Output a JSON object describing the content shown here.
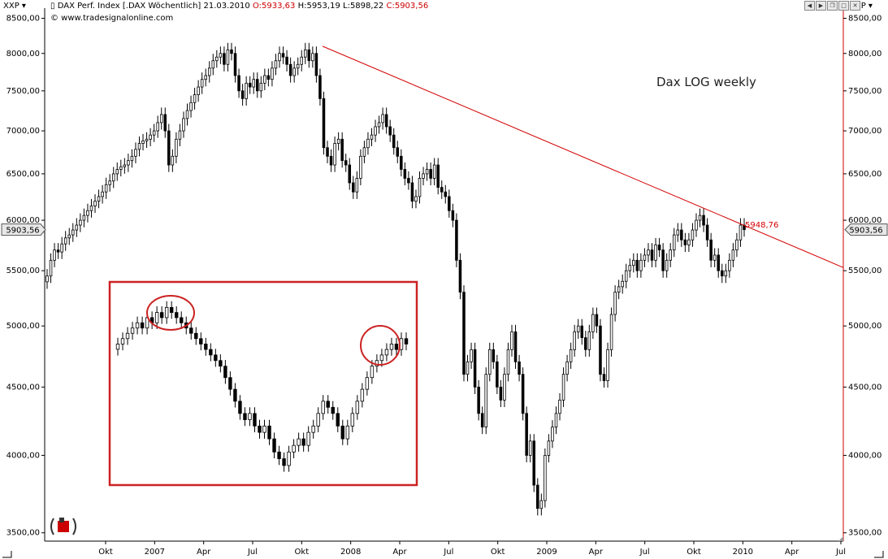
{
  "header": {
    "symbol_left": "XXP",
    "symbol_right": "XXP",
    "instrument": "DAX Perf. Index [.DAX  Wöchentlich] 21.03.2010",
    "open": "O:5933,63",
    "high": "H:5953,19",
    "low": "L:5898,22",
    "close": "C:5903,56",
    "copyright": "© www.tradesignalonline.com"
  },
  "colors": {
    "trendline": "#d40000",
    "annotation_box": "#cc2222",
    "axis_line": "#cc0000",
    "price_tag_bg": "#e8e8e8",
    "candle_up_fill": "#ffffff",
    "candle_down_fill": "#000000"
  },
  "chart_data": {
    "type": "candlestick",
    "title": "Dax LOG weekly",
    "scale": "log",
    "ylim": [
      3450,
      8650
    ],
    "y_ticks": [
      3500,
      4000,
      4500,
      5000,
      5500,
      6000,
      6500,
      7000,
      7500,
      8000,
      8500
    ],
    "y_tick_labels": [
      "3500,00",
      "4000,00",
      "4500,00",
      "5000,00",
      "5500,00",
      "6000,00",
      "6500,00",
      "7000,00",
      "7500,00",
      "8000,00",
      "8500,00"
    ],
    "x_tick_labels": [
      "Okt",
      "2007",
      "Apr",
      "Jul",
      "Okt",
      "2008",
      "Apr",
      "Jul",
      "Okt",
      "2009",
      "Apr",
      "Jul",
      "Okt",
      "2010",
      "Apr",
      "Jul"
    ],
    "current_price_label": "5903,56",
    "trendline": {
      "from": {
        "x": "2007-07",
        "y": 8100
      },
      "to": {
        "x": "2010-08",
        "y": 5530
      },
      "label": "5948,76",
      "label_value": 5948.76
    },
    "annotations": [
      {
        "type": "box",
        "description_hidden": true
      },
      {
        "type": "circle",
        "target": "2007 top"
      },
      {
        "type": "circle",
        "target": "2010 current"
      }
    ],
    "weekly_closes": [
      5450,
      5600,
      5700,
      5680,
      5760,
      5820,
      5850,
      5900,
      5950,
      6000,
      6050,
      6100,
      6150,
      6200,
      6250,
      6300,
      6380,
      6420,
      6500,
      6550,
      6580,
      6600,
      6650,
      6700,
      6780,
      6850,
      6880,
      6900,
      6950,
      7000,
      7100,
      7200,
      7000,
      6600,
      6700,
      6900,
      7000,
      7150,
      7250,
      7350,
      7450,
      7550,
      7650,
      7700,
      7800,
      7900,
      7950,
      8000,
      7850,
      8050,
      8000,
      7700,
      7500,
      7400,
      7600,
      7550,
      7650,
      7500,
      7600,
      7700,
      7650,
      7800,
      7900,
      8000,
      7950,
      7850,
      7700,
      7800,
      7850,
      7950,
      8050,
      7900,
      8000,
      7700,
      7400,
      6800,
      6700,
      6600,
      6850,
      6900,
      6650,
      6600,
      6400,
      6300,
      6450,
      6700,
      6800,
      6900,
      6950,
      7050,
      7100,
      7200,
      7050,
      6950,
      6800,
      6700,
      6550,
      6450,
      6400,
      6200,
      6250,
      6450,
      6500,
      6550,
      6450,
      6600,
      6350,
      6300,
      6250,
      6100,
      6000,
      5600,
      5300,
      4600,
      4700,
      4800,
      4500,
      4300,
      4200,
      4600,
      4800,
      4700,
      4500,
      4400,
      4600,
      4800,
      4950,
      4700,
      4600,
      4300,
      4000,
      4100,
      3800,
      3650,
      3700,
      4000,
      4100,
      4200,
      4300,
      4400,
      4600,
      4700,
      4800,
      4950,
      5000,
      4900,
      4800,
      4950,
      5100,
      5000,
      4600,
      4550,
      4800,
      5100,
      5300,
      5350,
      5400,
      5500,
      5550,
      5600,
      5500,
      5600,
      5650,
      5700,
      5600,
      5750,
      5700,
      5500,
      5600,
      5700,
      5850,
      5900,
      5800,
      5750,
      5800,
      5900,
      6000,
      6050,
      5950,
      5800,
      5600,
      5650,
      5500,
      5450,
      5500,
      5600,
      5700,
      5800,
      5950,
      5903.56
    ],
    "inset": {
      "description": "smaller copy of the 2007-2008 pattern inside the red box",
      "weekly_closes": [
        4800,
        4850,
        4900,
        4950,
        5000,
        4950,
        5050,
        5000,
        5100,
        5050,
        5150,
        5100,
        5050,
        5000,
        4950,
        4900,
        4850,
        4800,
        4750,
        4700,
        4650,
        4600,
        4500,
        4400,
        4300,
        4200,
        4150,
        4200,
        4100,
        4050,
        4100,
        4000,
        3900,
        3850,
        3800,
        3900,
        3950,
        4000,
        3950,
        4050,
        4100,
        4200,
        4300,
        4250,
        4200,
        4100,
        4000,
        4100,
        4200,
        4300,
        4400,
        4500,
        4600,
        4650,
        4700,
        4750,
        4800,
        4750,
        4850,
        4800
      ]
    }
  }
}
